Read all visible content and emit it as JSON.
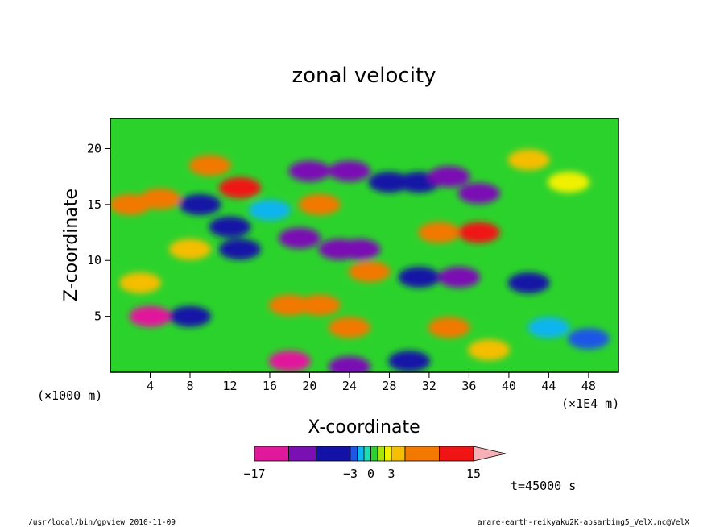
{
  "chart_data": {
    "type": "heatmap",
    "title": "zonal velocity",
    "xlabel": "X-coordinate",
    "ylabel": "Z-coordinate",
    "x_unit_left": "(×1000 m)",
    "x_unit_right": "(×1E4 m)",
    "xlim": [
      0,
      51
    ],
    "ylim": [
      0,
      22.7
    ],
    "x_ticks": [
      "4",
      "8",
      "12",
      "16",
      "20",
      "24",
      "28",
      "32",
      "36",
      "40",
      "44",
      "48"
    ],
    "y_ticks": [
      "5",
      "10",
      "15",
      "20"
    ],
    "colorbar": {
      "labels": [
        "−17",
        "−3",
        "0",
        "3",
        "15"
      ],
      "levels": [
        -17,
        -12,
        -8,
        -3,
        -2,
        -1,
        0,
        1,
        2,
        3,
        5,
        10,
        15
      ],
      "colors": [
        "#e2189c",
        "#7a0fb4",
        "#1212a6",
        "#1f56e6",
        "#0fb4f0",
        "#1fdcb4",
        "#2cd22c",
        "#a8e40a",
        "#f0f000",
        "#f5be00",
        "#f27800",
        "#f01414",
        "#f67f78"
      ],
      "extend": "max"
    },
    "time_label": "t=45000 s",
    "features": [
      {
        "x": 2,
        "z": 15,
        "v": 8
      },
      {
        "x": 5,
        "z": 15.5,
        "v": 5
      },
      {
        "x": 10,
        "z": 18.5,
        "v": 9
      },
      {
        "x": 13,
        "z": 16.5,
        "v": 10
      },
      {
        "x": 16,
        "z": 14.5,
        "v": -2
      },
      {
        "x": 9,
        "z": 15,
        "v": -8
      },
      {
        "x": 12,
        "z": 13,
        "v": -5
      },
      {
        "x": 13,
        "z": 11,
        "v": -7
      },
      {
        "x": 20,
        "z": 18,
        "v": -9
      },
      {
        "x": 21,
        "z": 15,
        "v": 7
      },
      {
        "x": 19,
        "z": 12,
        "v": -9
      },
      {
        "x": 23,
        "z": 11,
        "v": -12
      },
      {
        "x": 25,
        "z": 11,
        "v": -11
      },
      {
        "x": 26,
        "z": 9,
        "v": 6
      },
      {
        "x": 24,
        "z": 18,
        "v": -10
      },
      {
        "x": 28,
        "z": 17,
        "v": -6
      },
      {
        "x": 31,
        "z": 17,
        "v": -8
      },
      {
        "x": 34,
        "z": 17.5,
        "v": -10
      },
      {
        "x": 37,
        "z": 16,
        "v": -9
      },
      {
        "x": 33,
        "z": 12.5,
        "v": 9
      },
      {
        "x": 37,
        "z": 12.5,
        "v": 10
      },
      {
        "x": 35,
        "z": 8.5,
        "v": -12
      },
      {
        "x": 31,
        "z": 8.5,
        "v": -6
      },
      {
        "x": 42,
        "z": 8,
        "v": -4
      },
      {
        "x": 42,
        "z": 19,
        "v": 4
      },
      {
        "x": 46,
        "z": 17,
        "v": 2
      },
      {
        "x": 4,
        "z": 5,
        "v": -14
      },
      {
        "x": 8,
        "z": 5,
        "v": -6
      },
      {
        "x": 3,
        "z": 8,
        "v": 4
      },
      {
        "x": 18,
        "z": 6,
        "v": 8
      },
      {
        "x": 21,
        "z": 6,
        "v": 6
      },
      {
        "x": 18,
        "z": 1,
        "v": -14
      },
      {
        "x": 24,
        "z": 0.5,
        "v": -12
      },
      {
        "x": 24,
        "z": 4,
        "v": 5
      },
      {
        "x": 34,
        "z": 4,
        "v": 5
      },
      {
        "x": 38,
        "z": 2,
        "v": 4
      },
      {
        "x": 44,
        "z": 4,
        "v": -2
      },
      {
        "x": 48,
        "z": 3,
        "v": -3
      },
      {
        "x": 8,
        "z": 11,
        "v": 3
      },
      {
        "x": 30,
        "z": 1,
        "v": -6
      }
    ]
  },
  "footer": {
    "left": "/usr/local/bin/gpview  2010-11-09",
    "right": "arare-earth-reikyaku2K-absarbing5_VelX.nc@VelX"
  }
}
